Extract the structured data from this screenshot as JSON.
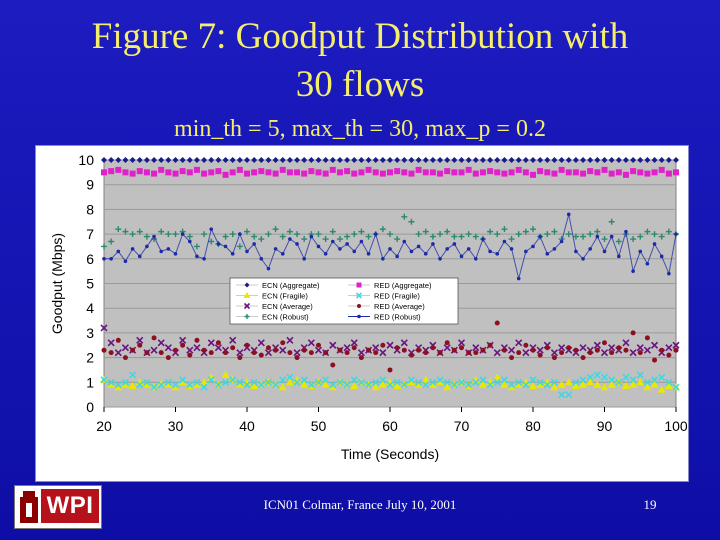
{
  "slide": {
    "title_line1": "Figure 7: Goodput Distribution with",
    "title_line2": "30 flows",
    "subtitle": "min_th = 5, max_th = 30, max_p = 0.2",
    "footer": "ICN01 Colmar, France July 10, 2001",
    "slide_number": "19",
    "logo_text": "WPI"
  },
  "colors": {
    "title": "#f5ee6a",
    "background": "#1414b4",
    "plot_area": "#c0c0c0"
  },
  "chart_data": {
    "type": "line",
    "xlabel": "Time (Seconds)",
    "ylabel": "Goodput (Mbps)",
    "xlim": [
      20,
      100
    ],
    "ylim": [
      0,
      10
    ],
    "xticks": [
      "20",
      "30",
      "40",
      "50",
      "60",
      "70",
      "80",
      "90",
      "100"
    ],
    "yticks": [
      "0",
      "1",
      "2",
      "3",
      "4",
      "5",
      "6",
      "7",
      "8",
      "9",
      "10"
    ],
    "grid": true,
    "legend_position": "center-left",
    "x": [
      20,
      21,
      22,
      23,
      24,
      25,
      26,
      27,
      28,
      29,
      30,
      31,
      32,
      33,
      34,
      35,
      36,
      37,
      38,
      39,
      40,
      41,
      42,
      43,
      44,
      45,
      46,
      47,
      48,
      49,
      50,
      51,
      52,
      53,
      54,
      55,
      56,
      57,
      58,
      59,
      60,
      61,
      62,
      63,
      64,
      65,
      66,
      67,
      68,
      69,
      70,
      71,
      72,
      73,
      74,
      75,
      76,
      77,
      78,
      79,
      80,
      81,
      82,
      83,
      84,
      85,
      86,
      87,
      88,
      89,
      90,
      91,
      92,
      93,
      94,
      95,
      96,
      97,
      98,
      99,
      100
    ],
    "series": [
      {
        "name": "ECN (Aggregate)",
        "color": "#1a1a8c",
        "marker": "diamond",
        "line": false,
        "values": [
          10,
          10,
          10,
          10,
          10,
          10,
          10,
          10,
          10,
          10,
          10,
          10,
          10,
          10,
          10,
          10,
          10,
          10,
          10,
          10,
          10,
          10,
          10,
          10,
          10,
          10,
          10,
          10,
          10,
          10,
          10,
          10,
          10,
          10,
          10,
          10,
          10,
          10,
          10,
          10,
          10,
          10,
          10,
          10,
          10,
          10,
          10,
          10,
          10,
          10,
          10,
          10,
          10,
          10,
          10,
          10,
          10,
          10,
          10,
          10,
          10,
          10,
          10,
          10,
          10,
          10,
          10,
          10,
          10,
          10,
          10,
          10,
          10,
          10,
          10,
          10,
          10,
          10,
          10,
          10,
          10
        ]
      },
      {
        "name": "RED (Aggregate)",
        "color": "#e020c8",
        "marker": "square",
        "line": false,
        "values": [
          9.5,
          9.55,
          9.6,
          9.5,
          9.45,
          9.55,
          9.5,
          9.45,
          9.6,
          9.5,
          9.45,
          9.55,
          9.5,
          9.6,
          9.45,
          9.5,
          9.55,
          9.4,
          9.5,
          9.6,
          9.45,
          9.5,
          9.55,
          9.5,
          9.45,
          9.6,
          9.5,
          9.5,
          9.45,
          9.55,
          9.5,
          9.45,
          9.6,
          9.5,
          9.55,
          9.45,
          9.5,
          9.6,
          9.5,
          9.45,
          9.5,
          9.55,
          9.5,
          9.45,
          9.6,
          9.5,
          9.5,
          9.45,
          9.55,
          9.5,
          9.5,
          9.6,
          9.45,
          9.5,
          9.55,
          9.5,
          9.45,
          9.5,
          9.6,
          9.5,
          9.4,
          9.55,
          9.5,
          9.45,
          9.6,
          9.5,
          9.5,
          9.45,
          9.55,
          9.5,
          9.6,
          9.45,
          9.5,
          9.4,
          9.55,
          9.5,
          9.45,
          9.5,
          9.6,
          9.45,
          9.5
        ]
      },
      {
        "name": "ECN (Fragile)",
        "color": "#e8e800",
        "marker": "triangle",
        "line": false,
        "values": [
          1.1,
          0.9,
          0.8,
          0.9,
          0.85,
          1.0,
          0.9,
          0.8,
          0.95,
          0.9,
          0.8,
          1.0,
          0.85,
          0.9,
          1.0,
          1.2,
          0.9,
          1.3,
          1.1,
          0.9,
          1.0,
          0.85,
          0.9,
          1.0,
          0.9,
          0.8,
          1.0,
          1.1,
          0.9,
          0.85,
          1.0,
          0.9,
          0.8,
          1.0,
          0.9,
          0.85,
          1.0,
          0.9,
          0.8,
          0.9,
          1.0,
          0.85,
          0.9,
          1.0,
          0.9,
          1.1,
          0.9,
          1.0,
          0.8,
          0.9,
          1.0,
          0.85,
          1.1,
          0.9,
          1.0,
          1.2,
          0.9,
          0.8,
          0.9,
          1.0,
          0.85,
          0.9,
          1.0,
          0.8,
          0.9,
          1.0,
          0.85,
          0.9,
          1.0,
          0.9,
          0.8,
          0.9,
          1.0,
          0.85,
          0.9,
          1.0,
          0.8,
          0.9,
          0.7,
          0.85,
          0.8
        ]
      },
      {
        "name": "RED (Fragile)",
        "color": "#40d8e0",
        "marker": "x",
        "line": false,
        "values": [
          1.1,
          1.0,
          0.9,
          1.0,
          1.3,
          0.9,
          1.0,
          0.8,
          0.9,
          1.0,
          0.9,
          1.1,
          0.9,
          1.0,
          0.8,
          1.1,
          0.9,
          1.0,
          1.1,
          1.0,
          0.9,
          1.0,
          0.9,
          1.0,
          0.9,
          1.1,
          1.2,
          1.0,
          1.1,
          0.9,
          1.0,
          1.1,
          0.9,
          1.0,
          0.9,
          1.1,
          1.0,
          0.9,
          1.0,
          1.1,
          0.9,
          1.0,
          0.9,
          1.1,
          1.0,
          0.9,
          1.0,
          1.1,
          1.0,
          0.9,
          1.0,
          0.9,
          1.0,
          1.1,
          0.9,
          1.0,
          1.1,
          0.9,
          1.0,
          0.9,
          1.1,
          1.0,
          0.9,
          1.0,
          0.5,
          0.5,
          1.0,
          1.1,
          1.2,
          1.3,
          1.2,
          1.1,
          1.0,
          1.2,
          1.1,
          1.3,
          1.0,
          1.1,
          1.2,
          1.0,
          0.8
        ]
      },
      {
        "name": "ECN (Average)",
        "color": "#6a1480",
        "marker": "x",
        "line": false,
        "values": [
          3.2,
          2.6,
          2.2,
          2.4,
          2.3,
          2.7,
          2.2,
          2.3,
          2.6,
          2.4,
          2.2,
          2.7,
          2.3,
          2.4,
          2.2,
          2.6,
          2.4,
          2.3,
          2.7,
          2.2,
          2.4,
          2.3,
          2.6,
          2.2,
          2.4,
          2.3,
          2.7,
          2.2,
          2.4,
          2.6,
          2.3,
          2.2,
          2.5,
          2.3,
          2.4,
          2.6,
          2.2,
          2.3,
          2.4,
          2.2,
          2.5,
          2.3,
          2.6,
          2.2,
          2.4,
          2.3,
          2.5,
          2.2,
          2.4,
          2.3,
          2.6,
          2.2,
          2.4,
          2.3,
          2.5,
          2.2,
          2.4,
          2.3,
          2.6,
          2.2,
          2.4,
          2.3,
          2.5,
          2.2,
          2.4,
          2.3,
          2.2,
          2.4,
          2.3,
          2.5,
          2.2,
          2.4,
          2.3,
          2.6,
          2.2,
          2.4,
          2.3,
          2.5,
          2.2,
          2.4,
          2.5
        ]
      },
      {
        "name": "RED (Average)",
        "color": "#8c1020",
        "marker": "circle",
        "line": false,
        "values": [
          2.3,
          2.2,
          2.7,
          2.0,
          2.3,
          2.5,
          2.2,
          2.8,
          2.2,
          2.0,
          2.3,
          2.5,
          2.1,
          2.7,
          2.3,
          2.2,
          2.6,
          2.2,
          2.4,
          2.0,
          2.5,
          2.2,
          2.1,
          2.4,
          2.3,
          2.6,
          2.2,
          2.0,
          2.3,
          2.2,
          2.5,
          2.2,
          1.7,
          2.3,
          2.2,
          2.4,
          2.0,
          2.3,
          2.2,
          2.5,
          1.5,
          2.4,
          2.3,
          2.1,
          2.3,
          2.2,
          2.4,
          2.2,
          2.6,
          2.3,
          2.4,
          2.2,
          2.2,
          2.3,
          2.5,
          3.4,
          2.3,
          2.0,
          2.2,
          2.5,
          2.3,
          2.1,
          2.4,
          2.0,
          2.2,
          2.4,
          2.3,
          2.0,
          2.2,
          2.3,
          2.6,
          2.2,
          2.4,
          2.3,
          3.0,
          2.2,
          2.8,
          1.9,
          2.3,
          2.1,
          2.3
        ]
      },
      {
        "name": "ECN (Robust)",
        "color": "#2a8a70",
        "marker": "plus",
        "line": false,
        "values": [
          6.5,
          6.7,
          7.2,
          7.1,
          7.0,
          7.1,
          6.9,
          6.8,
          7.1,
          7.0,
          7.0,
          7.1,
          6.9,
          6.5,
          7.0,
          6.7,
          6.6,
          6.9,
          7.0,
          6.5,
          7.1,
          6.9,
          6.8,
          7.0,
          7.2,
          6.9,
          7.1,
          7.0,
          6.8,
          7.0,
          7.0,
          6.8,
          7.1,
          6.8,
          6.9,
          7.0,
          7.1,
          6.9,
          7.0,
          7.2,
          7.0,
          6.8,
          7.7,
          7.5,
          7.0,
          7.1,
          6.9,
          7.0,
          7.1,
          6.9,
          6.9,
          7.0,
          6.9,
          6.8,
          7.1,
          7.0,
          7.2,
          6.8,
          7.0,
          7.1,
          7.2,
          6.9,
          7.0,
          7.1,
          6.8,
          7.0,
          6.9,
          6.9,
          7.0,
          7.1,
          6.8,
          7.5,
          6.7,
          7.0,
          6.8,
          6.9,
          7.1,
          7.0,
          6.9,
          7.1,
          7.0
        ]
      },
      {
        "name": "RED (Robust)",
        "color": "#1a2aa8",
        "marker": "circle-small",
        "line": true,
        "values": [
          6.0,
          6.0,
          6.3,
          5.9,
          6.4,
          6.1,
          6.5,
          6.9,
          6.3,
          6.4,
          6.2,
          7.0,
          6.7,
          6.1,
          6.0,
          7.2,
          6.6,
          6.5,
          6.2,
          7.0,
          6.3,
          6.6,
          6.0,
          5.6,
          6.4,
          6.2,
          6.8,
          6.6,
          6.0,
          6.9,
          6.5,
          6.2,
          6.7,
          6.4,
          6.6,
          6.3,
          6.7,
          6.2,
          7.0,
          6.0,
          6.4,
          6.1,
          6.7,
          6.3,
          6.5,
          6.2,
          6.6,
          6.0,
          6.4,
          6.6,
          6.1,
          6.4,
          6.0,
          6.8,
          6.3,
          6.2,
          6.7,
          6.4,
          5.2,
          6.3,
          6.5,
          6.9,
          6.2,
          6.4,
          6.7,
          7.8,
          6.3,
          6.0,
          6.4,
          6.9,
          6.3,
          6.9,
          6.1,
          7.1,
          5.5,
          6.3,
          5.8,
          6.6,
          6.1,
          5.4,
          7.0
        ]
      }
    ]
  }
}
